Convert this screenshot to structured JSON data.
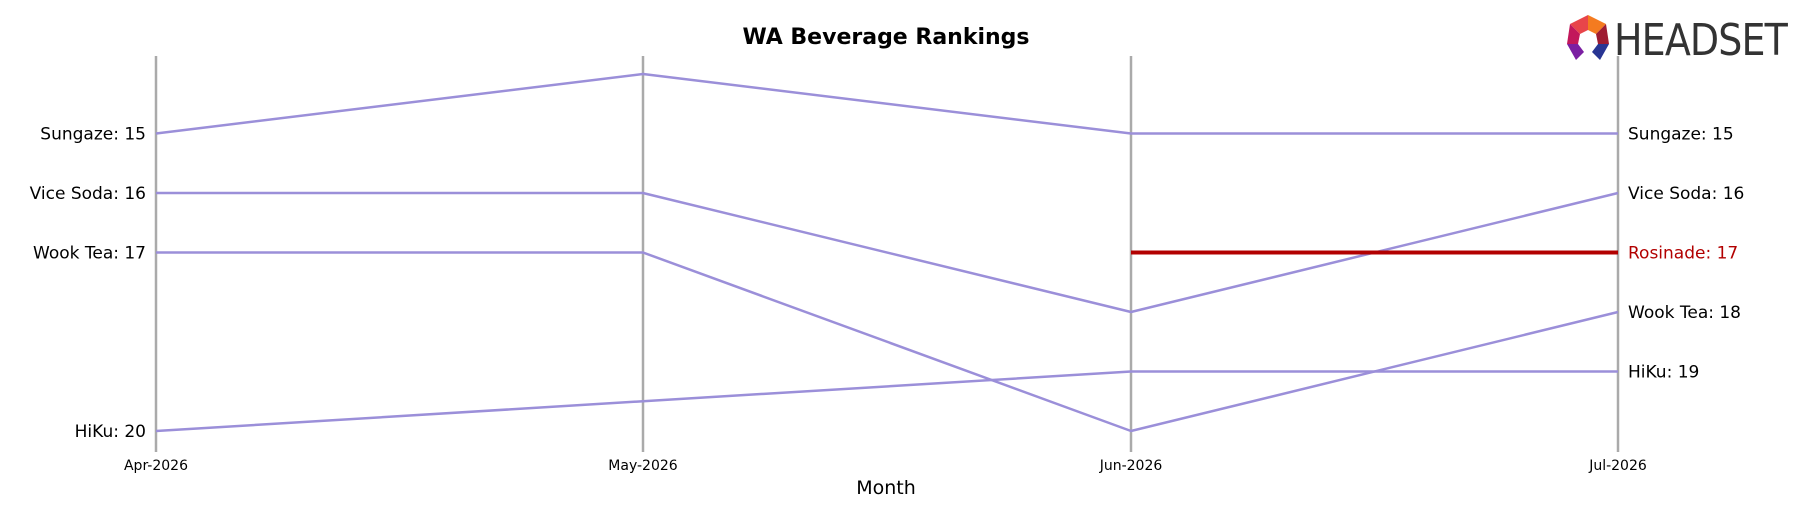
{
  "chart_data": {
    "type": "line",
    "title": "WA Beverage Rankings",
    "xlabel": "Month",
    "ylabel": "",
    "categories": [
      "Apr-2026",
      "May-2026",
      "Jun-2026",
      "Jul-2026"
    ],
    "y_axis": "rank",
    "ylim": [
      21,
      14
    ],
    "y_inverted": true,
    "grid": false,
    "series": [
      {
        "name": "Sungaze",
        "values": [
          15,
          14,
          15,
          15
        ],
        "color": "#9b8fd9",
        "highlight": false
      },
      {
        "name": "Vice Soda",
        "values": [
          16,
          16,
          18,
          16
        ],
        "color": "#9b8fd9",
        "highlight": false
      },
      {
        "name": "Wook Tea",
        "values": [
          17,
          17,
          20,
          18
        ],
        "color": "#9b8fd9",
        "highlight": false
      },
      {
        "name": "HiKu",
        "values": [
          20,
          null,
          19,
          19
        ],
        "color": "#9b8fd9",
        "highlight": false
      },
      {
        "name": "Rosinade",
        "values": [
          null,
          null,
          17,
          17
        ],
        "color": "#b20000",
        "highlight": true
      }
    ],
    "left_labels": [
      {
        "text": "Sungaze: 15",
        "rank": 15
      },
      {
        "text": "Vice Soda: 16",
        "rank": 16
      },
      {
        "text": "Wook Tea: 17",
        "rank": 17
      },
      {
        "text": "HiKu: 20",
        "rank": 20
      }
    ],
    "right_labels": [
      {
        "text": "Sungaze: 15",
        "rank": 15,
        "highlight": false
      },
      {
        "text": "Vice Soda: 16",
        "rank": 16,
        "highlight": false
      },
      {
        "text": "Rosinade: 17",
        "rank": 17,
        "highlight": true
      },
      {
        "text": "Wook Tea: 18",
        "rank": 18,
        "highlight": false
      },
      {
        "text": "HiKu: 19",
        "rank": 19,
        "highlight": false
      }
    ]
  },
  "logo": {
    "text": "HEADSET",
    "colors": [
      "#e8454a",
      "#f47b20",
      "#9e1b32",
      "#c2185b",
      "#7b1fa2",
      "#283593"
    ]
  },
  "colors": {
    "series_line": "#9b8fd9",
    "highlight_line": "#b20000",
    "axis_line": "#aaaaaa",
    "text": "#000000"
  }
}
